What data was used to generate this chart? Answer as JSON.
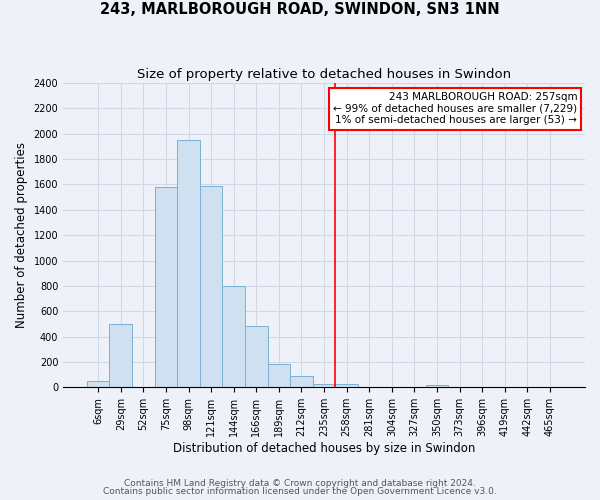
{
  "title": "243, MARLBOROUGH ROAD, SWINDON, SN3 1NN",
  "subtitle": "Size of property relative to detached houses in Swindon",
  "xlabel": "Distribution of detached houses by size in Swindon",
  "ylabel": "Number of detached properties",
  "bar_color": "#cfe0f0",
  "bar_edge_color": "#7ab0d4",
  "bin_labels": [
    "6sqm",
    "29sqm",
    "52sqm",
    "75sqm",
    "98sqm",
    "121sqm",
    "144sqm",
    "166sqm",
    "189sqm",
    "212sqm",
    "235sqm",
    "258sqm",
    "281sqm",
    "304sqm",
    "327sqm",
    "350sqm",
    "373sqm",
    "396sqm",
    "419sqm",
    "442sqm",
    "465sqm"
  ],
  "bar_values": [
    50,
    500,
    0,
    1580,
    1950,
    1590,
    800,
    480,
    185,
    90,
    25,
    30,
    0,
    0,
    0,
    20,
    0,
    0,
    0,
    0,
    0
  ],
  "ylim": [
    0,
    2400
  ],
  "yticks": [
    0,
    200,
    400,
    600,
    800,
    1000,
    1200,
    1400,
    1600,
    1800,
    2000,
    2200,
    2400
  ],
  "vline_index": 11,
  "annotation_title": "243 MARLBOROUGH ROAD: 257sqm",
  "annotation_line1": "← 99% of detached houses are smaller (7,229)",
  "annotation_line2": "1% of semi-detached houses are larger (53) →",
  "footer1": "Contains HM Land Registry data © Crown copyright and database right 2024.",
  "footer2": "Contains public sector information licensed under the Open Government Licence v3.0.",
  "background_color": "#eef2f8",
  "grid_color": "#d0d8e8",
  "title_fontsize": 10.5,
  "subtitle_fontsize": 9.5,
  "label_fontsize": 8.5,
  "tick_fontsize": 7,
  "footer_fontsize": 6.5
}
